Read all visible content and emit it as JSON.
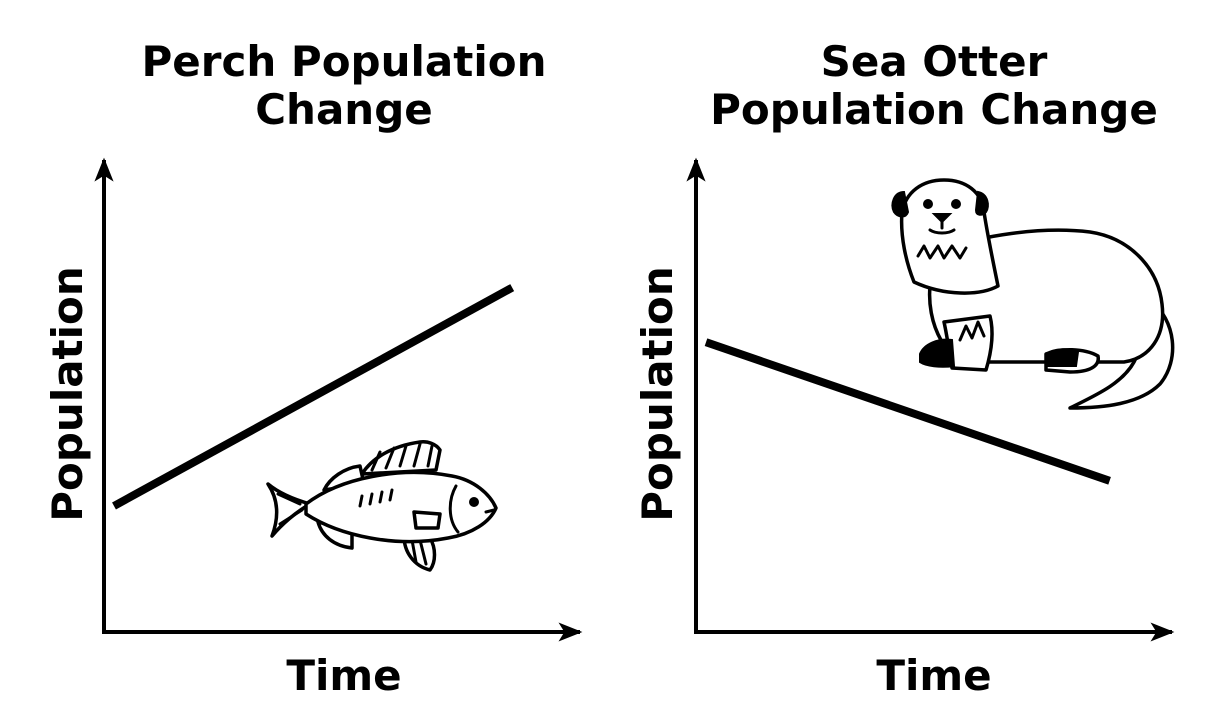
{
  "chart_data": [
    {
      "type": "line",
      "title_lines": [
        "Perch Population",
        "Change"
      ],
      "xlabel": "Time",
      "ylabel": "Population",
      "trend": "increasing",
      "x": [
        0,
        1
      ],
      "y": [
        0.3,
        0.82
      ],
      "xlim": [
        0,
        1.12
      ],
      "ylim": [
        0,
        1.1
      ],
      "illustration": "fish-icon"
    },
    {
      "type": "line",
      "title_lines": [
        "Sea Otter",
        "Population Change"
      ],
      "xlabel": "Time",
      "ylabel": "Population",
      "trend": "decreasing",
      "x": [
        0,
        1
      ],
      "y": [
        0.69,
        0.36
      ],
      "xlim": [
        0,
        1.1
      ],
      "ylim": [
        0,
        1.1
      ],
      "illustration": "sea-otter-icon"
    }
  ]
}
